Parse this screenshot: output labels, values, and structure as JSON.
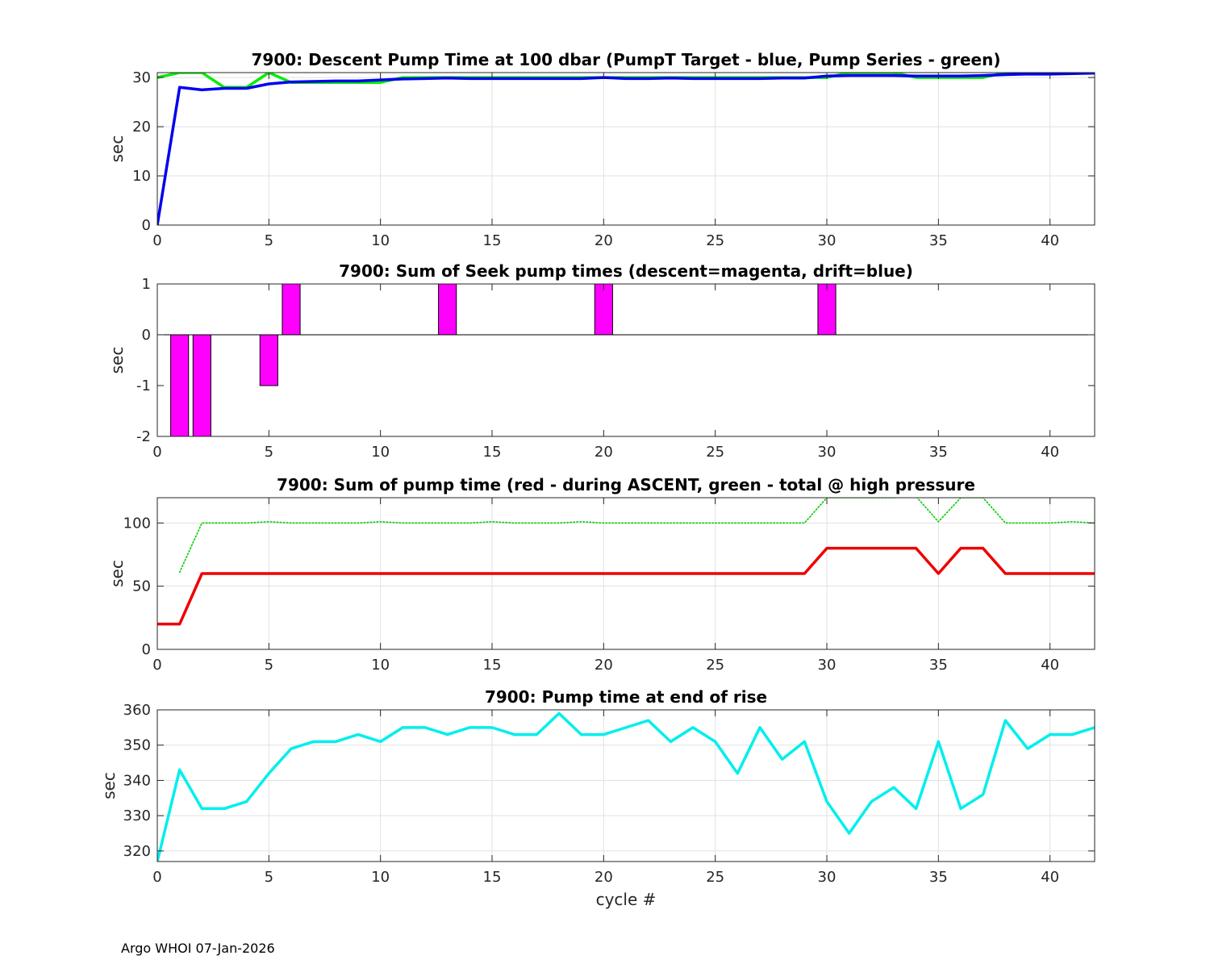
{
  "footer": "Argo WHOI 07-Jan-2026",
  "chart_data": [
    {
      "type": "line",
      "title": "7900: Descent Pump Time at 100 dbar (PumpT Target - blue, Pump Series - green)",
      "xlabel": "",
      "ylabel": "sec",
      "xlim": [
        0,
        42
      ],
      "ylim": [
        0,
        31
      ],
      "xticks": [
        0,
        5,
        10,
        15,
        20,
        25,
        30,
        35,
        40
      ],
      "yticks": [
        0,
        10,
        20,
        30
      ],
      "grid": true,
      "series": [
        {
          "color": "#00ee00",
          "style": "solid",
          "x": [
            0,
            1,
            2,
            3,
            4,
            5,
            6,
            7,
            8,
            9,
            10,
            11,
            12,
            13,
            14,
            15,
            16,
            17,
            18,
            19,
            20,
            21,
            22,
            23,
            24,
            25,
            26,
            27,
            28,
            29,
            30,
            31,
            32,
            33,
            34,
            35,
            36,
            37,
            38,
            39,
            40,
            41,
            42
          ],
          "y": [
            30,
            31,
            31,
            28,
            28,
            31,
            29,
            29,
            29,
            29,
            29,
            30,
            30,
            30,
            30,
            30,
            30,
            30,
            30,
            30,
            30,
            30,
            30,
            30,
            30,
            30,
            30,
            30,
            30,
            30,
            30,
            31,
            31,
            31,
            30,
            30,
            30,
            30,
            31,
            31,
            31,
            31,
            31
          ]
        },
        {
          "color": "#0000ee",
          "style": "solid",
          "x": [
            0,
            1,
            2,
            3,
            4,
            5,
            6,
            7,
            8,
            9,
            10,
            11,
            12,
            13,
            14,
            15,
            16,
            17,
            18,
            19,
            20,
            21,
            22,
            23,
            24,
            25,
            26,
            27,
            28,
            29,
            30,
            31,
            32,
            33,
            34,
            35,
            36,
            37,
            38,
            39,
            40,
            41,
            42
          ],
          "y": [
            0,
            28,
            27.5,
            27.8,
            27.8,
            28.7,
            29.1,
            29.2,
            29.3,
            29.3,
            29.5,
            29.7,
            29.8,
            29.9,
            29.8,
            29.8,
            29.8,
            29.8,
            29.8,
            29.8,
            30,
            29.8,
            29.8,
            29.9,
            29.8,
            29.8,
            29.8,
            29.8,
            29.9,
            29.9,
            30.3,
            30.4,
            30.4,
            30.4,
            30.3,
            30.3,
            30.3,
            30.4,
            30.6,
            30.7,
            30.7,
            30.8,
            30.9
          ]
        }
      ]
    },
    {
      "type": "bar",
      "title": "7900: Sum of Seek pump times (descent=magenta, drift=blue)",
      "xlabel": "",
      "ylabel": "sec",
      "xlim": [
        0,
        42
      ],
      "ylim": [
        -2,
        1
      ],
      "xticks": [
        0,
        5,
        10,
        15,
        20,
        25,
        30,
        35,
        40
      ],
      "yticks": [
        -2,
        -1,
        0,
        1
      ],
      "grid": false,
      "bar_width": 0.8,
      "series": [
        {
          "color": "#ff00ff",
          "x": [
            1,
            2,
            5,
            6,
            13,
            20,
            30
          ],
          "y": [
            -2,
            -2,
            -1,
            1,
            1,
            1,
            1
          ]
        }
      ]
    },
    {
      "type": "line",
      "title": "7900: Sum of pump time (red - during ASCENT, green - total @ high pressure",
      "xlabel": "",
      "ylabel": "sec",
      "xlim": [
        0,
        42
      ],
      "ylim": [
        0,
        120
      ],
      "xticks": [
        0,
        5,
        10,
        15,
        20,
        25,
        30,
        35,
        40
      ],
      "yticks": [
        0,
        50,
        100
      ],
      "grid": true,
      "series": [
        {
          "color": "#00cc00",
          "style": "dotted",
          "x": [
            1,
            2,
            3,
            4,
            5,
            6,
            7,
            8,
            9,
            10,
            11,
            12,
            13,
            14,
            15,
            16,
            17,
            18,
            19,
            20,
            21,
            22,
            23,
            24,
            25,
            26,
            27,
            28,
            29,
            30,
            31,
            32,
            33,
            34,
            35,
            36,
            37,
            38,
            39,
            40,
            41,
            42
          ],
          "y": [
            61,
            100,
            100,
            100,
            101,
            100,
            100,
            100,
            100,
            101,
            100,
            100,
            100,
            100,
            101,
            100,
            100,
            100,
            101,
            100,
            100,
            100,
            100,
            100,
            100,
            100,
            100,
            100,
            100,
            120,
            120,
            120,
            120,
            121,
            101,
            120,
            120,
            100,
            100,
            100,
            101,
            100
          ]
        },
        {
          "color": "#ee0000",
          "style": "solid",
          "x": [
            0,
            1,
            2,
            3,
            4,
            5,
            6,
            7,
            8,
            9,
            10,
            11,
            12,
            13,
            14,
            15,
            16,
            17,
            18,
            19,
            20,
            21,
            22,
            23,
            24,
            25,
            26,
            27,
            28,
            29,
            30,
            31,
            32,
            33,
            34,
            35,
            36,
            37,
            38,
            39,
            40,
            41,
            42
          ],
          "y": [
            20,
            20,
            60,
            60,
            60,
            60,
            60,
            60,
            60,
            60,
            60,
            60,
            60,
            60,
            60,
            60,
            60,
            60,
            60,
            60,
            60,
            60,
            60,
            60,
            60,
            60,
            60,
            60,
            60,
            60,
            80,
            80,
            80,
            80,
            80,
            60,
            80,
            80,
            60,
            60,
            60,
            60,
            60
          ]
        }
      ]
    },
    {
      "type": "line",
      "title": "7900: Pump time at end of rise",
      "xlabel": "cycle #",
      "ylabel": "sec",
      "xlim": [
        0,
        42
      ],
      "ylim": [
        317,
        360
      ],
      "xticks": [
        0,
        5,
        10,
        15,
        20,
        25,
        30,
        35,
        40
      ],
      "yticks": [
        320,
        330,
        340,
        350,
        360
      ],
      "grid": true,
      "series": [
        {
          "color": "#00eeee",
          "style": "solid",
          "x": [
            0,
            1,
            2,
            3,
            4,
            5,
            6,
            7,
            8,
            9,
            10,
            11,
            12,
            13,
            14,
            15,
            16,
            17,
            18,
            19,
            20,
            21,
            22,
            23,
            24,
            25,
            26,
            27,
            28,
            29,
            30,
            31,
            32,
            33,
            34,
            35,
            36,
            37,
            38,
            39,
            40,
            41,
            42
          ],
          "y": [
            317,
            343,
            332,
            332,
            334,
            342,
            349,
            351,
            351,
            353,
            351,
            355,
            355,
            353,
            355,
            355,
            353,
            353,
            359,
            353,
            353,
            355,
            357,
            351,
            355,
            351,
            342,
            355,
            346,
            351,
            334,
            325,
            334,
            338,
            332,
            351,
            332,
            336,
            357,
            349,
            353,
            353,
            355
          ]
        }
      ]
    }
  ]
}
